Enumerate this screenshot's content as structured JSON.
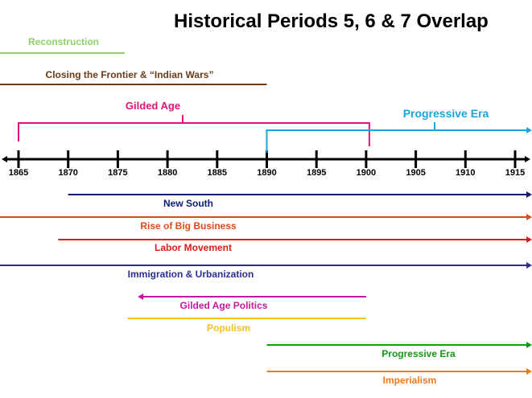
{
  "title": "Historical Periods 5, 6 & 7 Overlap",
  "axis": {
    "min": 1865,
    "max": 1915,
    "ticks": [
      "1865",
      "1870",
      "1875",
      "1880",
      "1885",
      "1890",
      "1895",
      "1900",
      "1905",
      "1910",
      "1915"
    ]
  },
  "periods": [
    {
      "label": "Reconstruction",
      "color": "#8fd16a",
      "style": "line",
      "start": 1865,
      "end": 1876
    },
    {
      "label": "Closing the Frontier & “Indian Wars”",
      "color": "#6b3a17",
      "style": "line",
      "start": 1865,
      "end": 1890
    },
    {
      "label": "Gilded Age",
      "color": "#e0157a",
      "style": "bracket",
      "start": 1865,
      "end": 1900
    },
    {
      "label": "Progressive Era",
      "color": "#1aa6dd",
      "style": "bracket-arrow",
      "start": 1890,
      "end": 1915
    }
  ],
  "themes": [
    {
      "label": "New South",
      "color": "#0a1e7a",
      "start": 1870,
      "end": 1915,
      "arrow_left": false,
      "arrow_right": true
    },
    {
      "label": "Rise of Big Business",
      "color": "#e04a1a",
      "start": 1865,
      "end": 1915,
      "arrow_left": false,
      "arrow_right": true
    },
    {
      "label": "Labor Movement",
      "color": "#e01a1a",
      "start": 1869,
      "end": 1915,
      "arrow_left": false,
      "arrow_right": true
    },
    {
      "label": "Immigration & Urbanization",
      "color": "#2b2f8f",
      "start": 1865,
      "end": 1915,
      "arrow_left": false,
      "arrow_right": true
    },
    {
      "label": "Gilded Age Politics",
      "color": "#c4189e",
      "start": 1877,
      "end": 1900,
      "arrow_left": true,
      "arrow_right": false
    },
    {
      "label": "Populism",
      "color": "#f5c021",
      "start": 1876,
      "end": 1900,
      "arrow_left": false,
      "arrow_right": false
    },
    {
      "label": "Progressive Era",
      "color": "#139a13",
      "start": 1890,
      "end": 1915,
      "arrow_left": false,
      "arrow_right": true
    },
    {
      "label": "Imperialism",
      "color": "#ef7a1a",
      "start": 1890,
      "end": 1915,
      "arrow_left": false,
      "arrow_right": true
    }
  ]
}
